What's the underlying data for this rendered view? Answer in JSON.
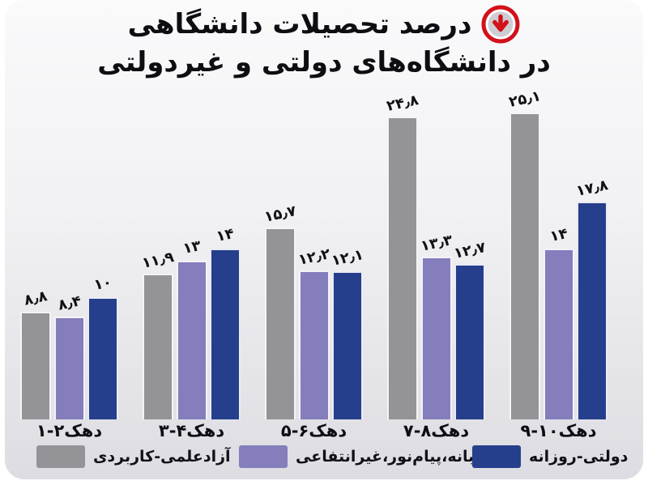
{
  "title": {
    "line1": "درصد تحصیلات دانشگاهی",
    "line2": "در دانشگاه‌های دولتی و غیردولتی",
    "icon": "red-circle-down-arrow"
  },
  "colors": {
    "page_background": "#ffffff",
    "panel_top": "#fafafb",
    "panel_bottom": "#dcdce2",
    "text": "#0d0d12",
    "icon_red": "#d2111a",
    "icon_inner_gray": "#cdcdd2",
    "bar_gray": "#939398",
    "bar_purple": "#847ebc",
    "bar_blue": "#263f8c"
  },
  "chart_data": {
    "type": "bar",
    "direction": "rtl",
    "title": "درصد تحصیلات دانشگاهی در دانشگاه‌های دولتی و غیردولتی",
    "xlabel": "",
    "ylabel": "",
    "ylim": [
      0,
      27
    ],
    "grid": false,
    "legend_position": "bottom",
    "value_labels_rotation_deg": -12,
    "categories": [
      "دهک۲-۱",
      "دهک۴-۳",
      "دهک۶-۵",
      "دهک۸-۷",
      "دهک۱۰-۹"
    ],
    "series": [
      {
        "id": "azad-elmi-karbordi",
        "name": "آزادعلمی-کاربردی",
        "color": "#939398",
        "values": [
          8.8,
          11.9,
          15.7,
          24.8,
          25.1
        ],
        "value_labels": [
          "۸٫۸",
          "۱۱٫۹",
          "۱۵٫۷",
          "۲۴٫۸",
          "۲۵٫۱"
        ]
      },
      {
        "id": "shabane-payamnoor-gheyrentefai",
        "name": "شبانه،پیام‌نور،غیرانتفاعی",
        "color": "#847ebc",
        "values": [
          8.4,
          13,
          12.2,
          13.3,
          14
        ],
        "value_labels": [
          "۸٫۴",
          "۱۳",
          "۱۲٫۲",
          "۱۳٫۳",
          "۱۴"
        ]
      },
      {
        "id": "dolati-roozane",
        "name": "دولتی-روزانه",
        "color": "#263f8c",
        "values": [
          10,
          14,
          12.1,
          12.7,
          17.8
        ],
        "value_labels": [
          "۱۰",
          "۱۴",
          "۱۲٫۱",
          "۱۲٫۷",
          "۱۷٫۸"
        ]
      }
    ]
  }
}
